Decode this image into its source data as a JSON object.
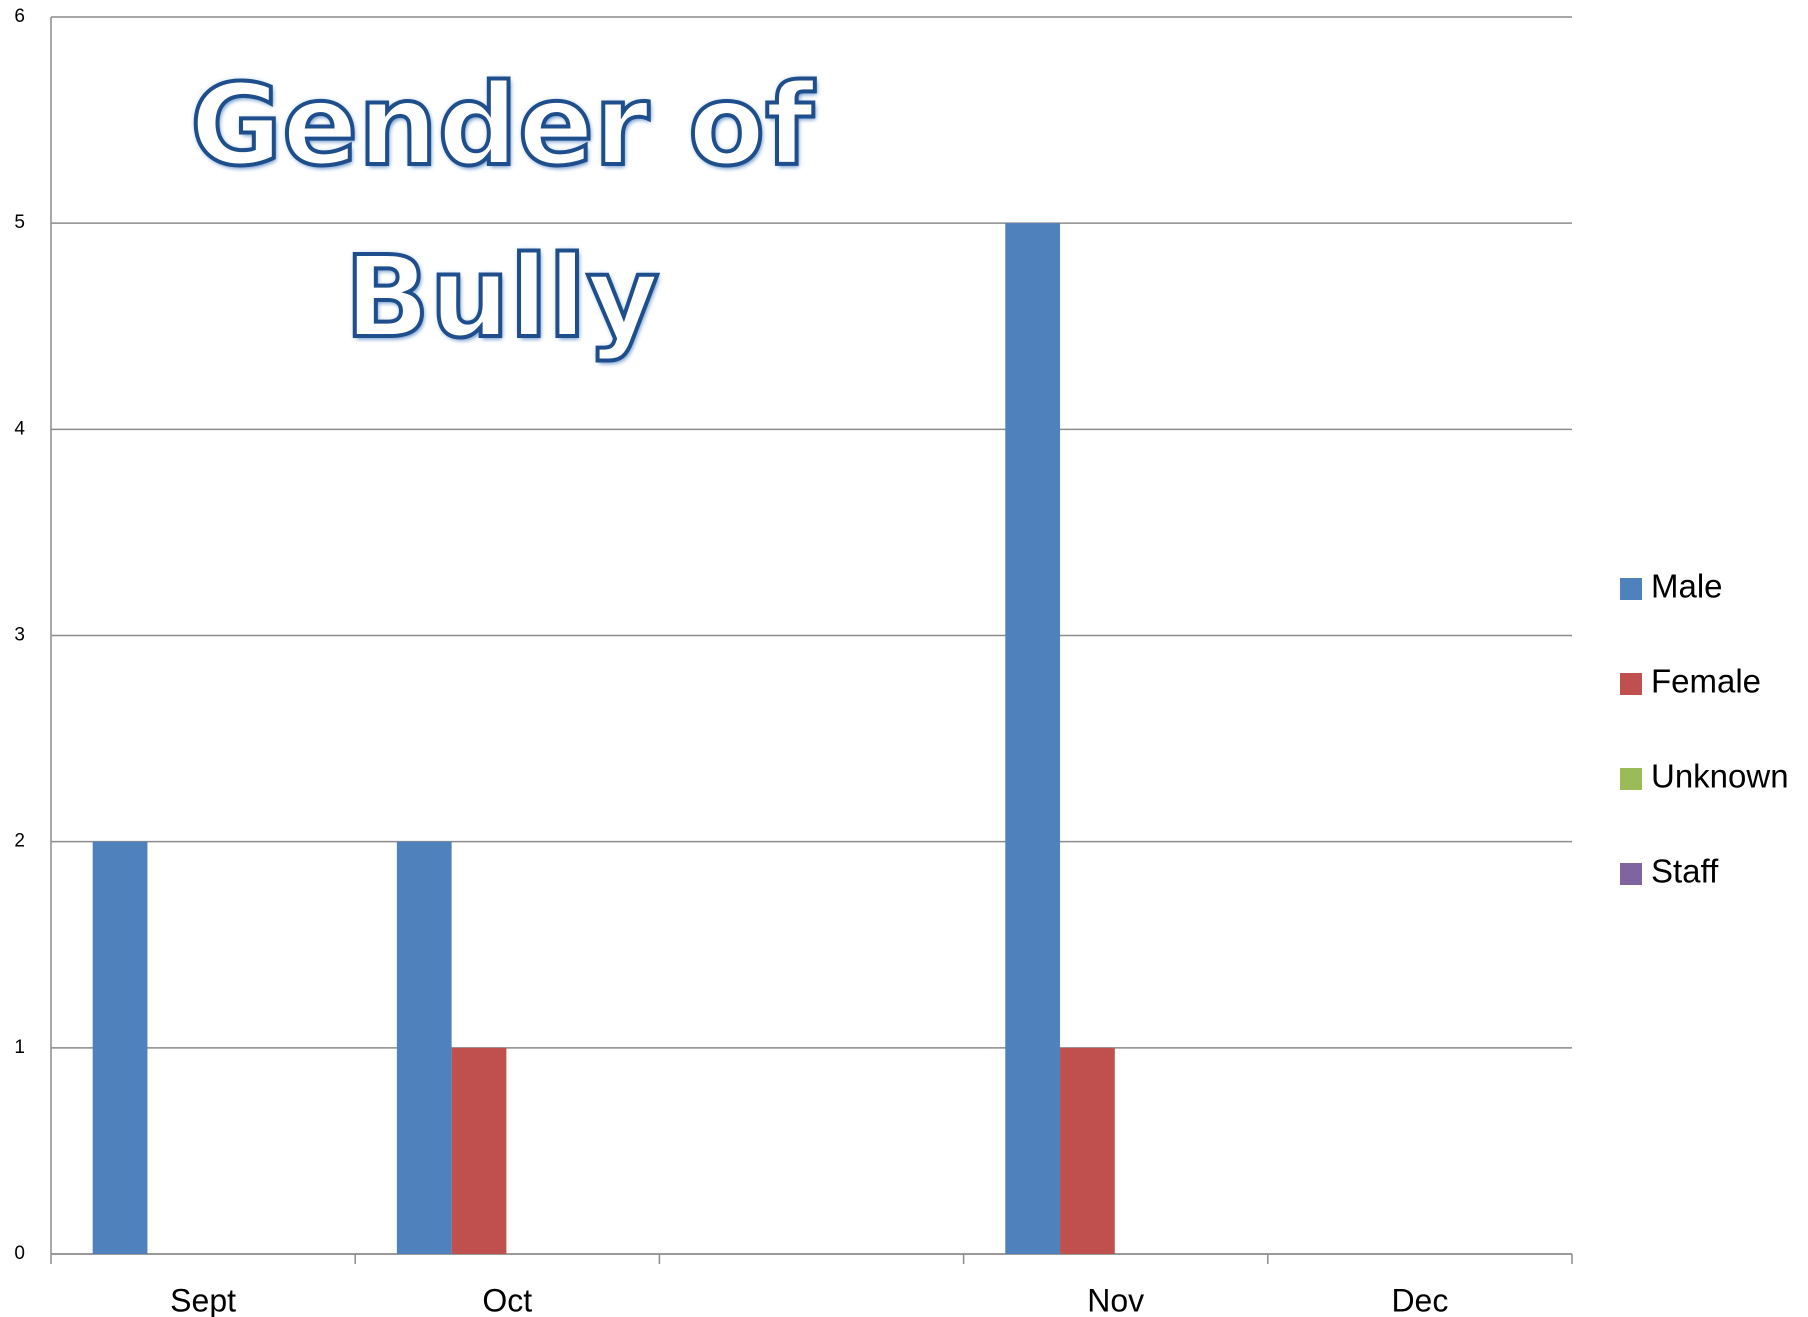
{
  "chart_data": {
    "type": "bar",
    "title": "Gender of Bully",
    "categories": [
      "Sept",
      "Oct",
      null,
      "Nov",
      "Dec"
    ],
    "series": [
      {
        "name": "Male",
        "color": "#4f81bd",
        "values": [
          2,
          2,
          null,
          5,
          0
        ]
      },
      {
        "name": "Female",
        "color": "#c0504d",
        "values": [
          0,
          1,
          null,
          1,
          0
        ]
      },
      {
        "name": "Unknown",
        "color": "#9bbb59",
        "values": [
          0,
          0,
          null,
          0,
          0
        ]
      },
      {
        "name": "Staff",
        "color": "#8064a2",
        "values": [
          0,
          0,
          null,
          0,
          0
        ]
      }
    ],
    "ylim": [
      0,
      6
    ],
    "yticks": [
      0,
      1,
      2,
      3,
      4,
      5,
      6
    ],
    "grid": true,
    "legend": "right"
  }
}
